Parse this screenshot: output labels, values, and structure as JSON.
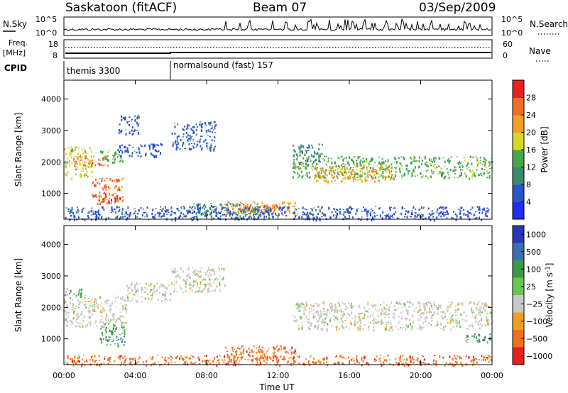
{
  "header": {
    "station": "Saskatoon (fitACF)",
    "beam": "Beam 07",
    "date": "03/Sep/2009"
  },
  "top_panel": {
    "left_label": "N.Sky",
    "right_label": "N.Search",
    "left_ticks": [
      {
        "base": "10",
        "exp": "^5"
      },
      {
        "base": "10",
        "exp": "^0"
      }
    ],
    "right_ticks": [
      {
        "base": "10",
        "exp": "^5"
      },
      {
        "base": "10",
        "exp": "^0"
      }
    ]
  },
  "freq_panel": {
    "label_line1": "Freq.",
    "label_line2": "[MHz]",
    "left_ticks": [
      "18",
      "8"
    ],
    "right_ticks": [
      "60",
      "0"
    ],
    "right_label": "Nave"
  },
  "cpid_panel": {
    "label": "CPID",
    "modes": [
      {
        "name": "themis 3300",
        "start_hour": 0
      },
      {
        "name": "normalsound (fast) 157",
        "start_hour": 6
      }
    ]
  },
  "power_panel": {
    "ylabel": "Slant Range [km]",
    "ytick_labels": [
      "1000",
      "2000",
      "3000",
      "4000"
    ],
    "colorbar_label": "Power [dB]",
    "colorbar_ticks": [
      "4",
      "8",
      "12",
      "16",
      "20",
      "24",
      "28"
    ],
    "colors": [
      "#1f2ef0",
      "#2a55c8",
      "#3a8a6a",
      "#45a84a",
      "#d8d820",
      "#f5a020",
      "#f07020",
      "#e82020"
    ]
  },
  "velocity_panel": {
    "ylabel": "Slant Range [km]",
    "ytick_labels": [
      "1000",
      "2000",
      "3000",
      "4000"
    ],
    "colorbar_label": "Velocity [m s",
    "colorbar_sup": "-1",
    "colorbar_close": "]",
    "colorbar_ticks": [
      "1000",
      "500",
      "100",
      "25",
      "−25",
      "−100",
      "−500",
      "−1000"
    ],
    "colors": [
      "#2838b8",
      "#3a70b0",
      "#3a9a4a",
      "#6ac850",
      "#c8c8c8",
      "#f0a020",
      "#f07020",
      "#e82020"
    ]
  },
  "x_axis": {
    "title": "Time UT",
    "tick_labels": [
      "00:00",
      "04:00",
      "08:00",
      "12:00",
      "16:00",
      "20:00",
      "00:00"
    ]
  },
  "chart_data": {
    "type": "heatmap",
    "x_range_hours": [
      0,
      24
    ],
    "y_range_km": [
      180,
      4600
    ],
    "power_ticks_db": [
      4,
      8,
      12,
      16,
      20,
      24,
      28
    ],
    "velocity_ticks_ms": [
      1000,
      500,
      100,
      25,
      -25,
      -100,
      -500,
      -1000
    ],
    "power_regions": [
      {
        "t0": 0.0,
        "t1": 1.6,
        "r0": 1500,
        "r1": 2500,
        "power": 16
      },
      {
        "t0": 0.5,
        "t1": 2.5,
        "r0": 1900,
        "r1": 2200,
        "power": 26
      },
      {
        "t0": 1.5,
        "t1": 3.3,
        "r0": 700,
        "r1": 1500,
        "power": 24
      },
      {
        "t0": 1.9,
        "t1": 3.0,
        "r0": 750,
        "r1": 1050,
        "power": 30
      },
      {
        "t0": 2.0,
        "t1": 3.4,
        "r0": 2000,
        "r1": 2400,
        "power": 12
      },
      {
        "t0": 3.0,
        "t1": 5.5,
        "r0": 2200,
        "r1": 2600,
        "power": 6
      },
      {
        "t0": 3.0,
        "t1": 4.2,
        "r0": 2900,
        "r1": 3500,
        "power": 6
      },
      {
        "t0": 6.0,
        "t1": 8.5,
        "r0": 2400,
        "r1": 3300,
        "power": 6
      },
      {
        "t0": 7.0,
        "t1": 11.5,
        "r0": 200,
        "r1": 700,
        "power": 8
      },
      {
        "t0": 9.0,
        "t1": 13.0,
        "r0": 350,
        "r1": 750,
        "power": 20
      },
      {
        "t0": 9.8,
        "t1": 12.0,
        "r0": 420,
        "r1": 650,
        "power": 26
      },
      {
        "t0": 12.8,
        "t1": 24.0,
        "r0": 1500,
        "r1": 2200,
        "power": 14
      },
      {
        "t0": 14.0,
        "t1": 18.5,
        "r0": 1400,
        "r1": 1900,
        "power": 20
      },
      {
        "t0": 12.8,
        "t1": 14.5,
        "r0": 1800,
        "r1": 2600,
        "power": 10
      },
      {
        "t0": 0.0,
        "t1": 24.0,
        "r0": 180,
        "r1": 600,
        "power": 6
      }
    ],
    "velocity_regions": [
      {
        "t0": 0.0,
        "t1": 3.5,
        "r0": 1400,
        "r1": 2400,
        "velocity": -10
      },
      {
        "t0": 0.0,
        "t1": 1.0,
        "r0": 2300,
        "r1": 2600,
        "velocity": 150
      },
      {
        "t0": 2.0,
        "t1": 3.4,
        "r0": 800,
        "r1": 1500,
        "velocity": 150
      },
      {
        "t0": 3.5,
        "t1": 6.0,
        "r0": 2200,
        "r1": 2800,
        "velocity": -10
      },
      {
        "t0": 6.0,
        "t1": 9.0,
        "r0": 2500,
        "r1": 3300,
        "velocity": -10
      },
      {
        "t0": 0.0,
        "t1": 24.0,
        "r0": 180,
        "r1": 500,
        "velocity": -120
      },
      {
        "t0": 9.0,
        "t1": 13.0,
        "r0": 350,
        "r1": 800,
        "velocity": -120
      },
      {
        "t0": 12.8,
        "t1": 24.0,
        "r0": 1300,
        "r1": 2200,
        "velocity": -5
      },
      {
        "t0": 22.5,
        "t1": 24.0,
        "r0": 900,
        "r1": 1200,
        "velocity": 150
      }
    ]
  }
}
